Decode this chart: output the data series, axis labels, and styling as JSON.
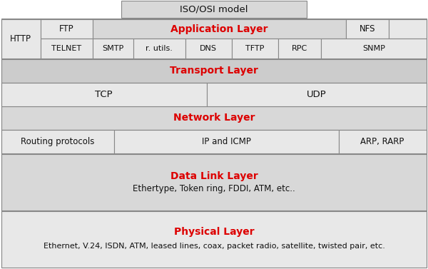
{
  "bg": "#ffffff",
  "c1": "#e8e8e8",
  "c2": "#d8d8d8",
  "c3": "#cccccc",
  "red": "#dd0000",
  "black": "#111111",
  "border": "#888888",
  "title": "ISO/OSI model",
  "app_label": "Application Layer",
  "app_row1": [
    "FTP",
    "Application Layer",
    "NFS",
    ""
  ],
  "app_row2": [
    "HTTP",
    "TELNET",
    "SMTP",
    "r. utils.",
    "DNS",
    "TFTP",
    "RPC",
    "SNMP"
  ],
  "trans_label": "Transport Layer",
  "trans_items": [
    "TCP",
    "UDP"
  ],
  "net_label": "Network Layer",
  "net_items": [
    "Routing protocols",
    "IP and ICMP",
    "ARP, RARP"
  ],
  "dl_label": "Data Link Layer",
  "dl_sub": "Ethertype, Token ring, FDDI, ATM, etc..",
  "ph_label": "Physical Layer",
  "ph_sub": "Ethernet, V.24, ISDN, ATM, leased lines, coax, packet radio, satellite, twisted pair, etc."
}
